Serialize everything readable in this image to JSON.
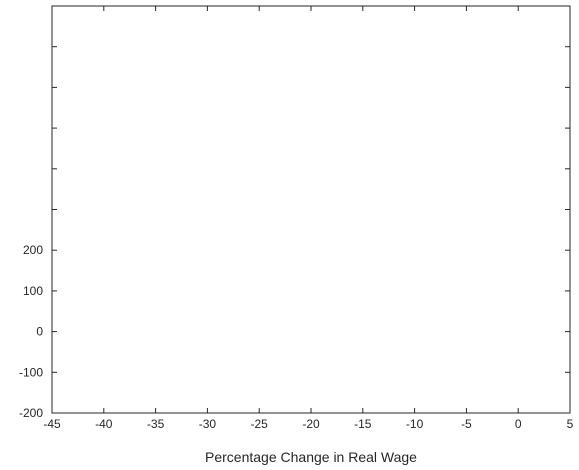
{
  "chart_data": {
    "type": "line",
    "title": "",
    "xlabel": "Percentage Change in Real Wage",
    "ylabel": "",
    "xlim": [
      -45,
      5
    ],
    "ylim": [
      -200,
      800
    ],
    "xticks": [
      {
        "value": -45,
        "label": "-45"
      },
      {
        "value": -40,
        "label": "-40"
      },
      {
        "value": -35,
        "label": "-35"
      },
      {
        "value": -30,
        "label": "-30"
      },
      {
        "value": -25,
        "label": "-25"
      },
      {
        "value": -20,
        "label": "-20"
      },
      {
        "value": -15,
        "label": "-15"
      },
      {
        "value": -10,
        "label": "-10"
      },
      {
        "value": -5,
        "label": "-5"
      },
      {
        "value": 0,
        "label": "0"
      },
      {
        "value": 5,
        "label": "5"
      }
    ],
    "yticks": [
      {
        "value": -200,
        "label": "-200"
      },
      {
        "value": -100,
        "label": "-100"
      },
      {
        "value": 0,
        "label": "0"
      },
      {
        "value": 100,
        "label": "100"
      },
      {
        "value": 200,
        "label": "200"
      },
      {
        "value": 300,
        "label": ""
      },
      {
        "value": 400,
        "label": ""
      },
      {
        "value": 500,
        "label": ""
      },
      {
        "value": 600,
        "label": ""
      },
      {
        "value": 700,
        "label": ""
      }
    ],
    "grid": false,
    "series": []
  }
}
